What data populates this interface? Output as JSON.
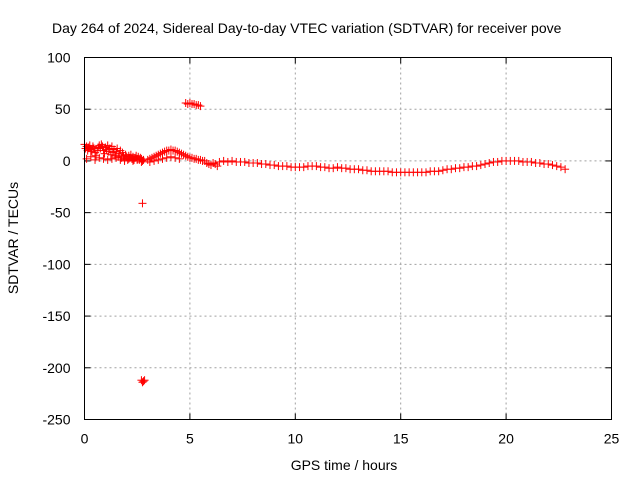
{
  "chart_data": {
    "type": "scatter",
    "title": "Day 264 of 2024, Sidereal Day-to-day VTEC variation (SDTVAR) for receiver pove",
    "xlabel": "GPS time / hours",
    "ylabel": "SDTVAR / TECUs",
    "xlim": [
      0,
      25
    ],
    "ylim": [
      -250,
      100
    ],
    "xticks": [
      0,
      5,
      10,
      15,
      20,
      25
    ],
    "yticks": [
      100,
      50,
      0,
      -50,
      -100,
      -150,
      -200,
      -250
    ],
    "grid": true,
    "marker": "+",
    "color": "#ff0000",
    "series": [
      {
        "name": "SDTVAR",
        "points": [
          [
            0.0,
            16
          ],
          [
            0.05,
            12
          ],
          [
            0.1,
            14
          ],
          [
            0.15,
            10
          ],
          [
            0.2,
            13
          ],
          [
            0.25,
            15
          ],
          [
            0.3,
            11
          ],
          [
            0.35,
            9
          ],
          [
            0.4,
            14
          ],
          [
            0.45,
            12
          ],
          [
            0.5,
            8
          ],
          [
            0.55,
            5
          ],
          [
            0.6,
            10
          ],
          [
            0.65,
            13
          ],
          [
            0.7,
            15
          ],
          [
            0.75,
            12
          ],
          [
            0.8,
            16
          ],
          [
            0.85,
            14
          ],
          [
            0.9,
            10
          ],
          [
            0.95,
            7
          ],
          [
            1.0,
            13
          ],
          [
            1.05,
            11
          ],
          [
            1.1,
            15
          ],
          [
            1.15,
            9
          ],
          [
            1.2,
            12
          ],
          [
            1.25,
            6
          ],
          [
            1.3,
            14
          ],
          [
            1.35,
            8
          ],
          [
            1.4,
            11
          ],
          [
            1.45,
            5
          ],
          [
            1.5,
            9
          ],
          [
            1.55,
            12
          ],
          [
            1.6,
            4
          ],
          [
            1.65,
            7
          ],
          [
            1.7,
            10
          ],
          [
            1.75,
            3
          ],
          [
            1.8,
            8
          ],
          [
            1.85,
            5
          ],
          [
            1.9,
            2
          ],
          [
            1.95,
            6
          ],
          [
            2.0,
            4
          ],
          [
            2.05,
            1
          ],
          [
            2.1,
            5
          ],
          [
            2.15,
            3
          ],
          [
            2.2,
            6
          ],
          [
            2.25,
            2
          ],
          [
            2.3,
            4
          ],
          [
            2.35,
            1
          ],
          [
            2.4,
            3
          ],
          [
            2.45,
            5
          ],
          [
            2.5,
            2
          ],
          [
            2.55,
            4
          ],
          [
            2.6,
            1
          ],
          [
            2.65,
            3
          ],
          [
            2.7,
            2
          ],
          [
            2.75,
            0
          ],
          [
            2.8,
            1
          ],
          [
            0.1,
            2
          ],
          [
            0.3,
            4
          ],
          [
            0.5,
            1
          ],
          [
            0.7,
            3
          ],
          [
            0.9,
            2
          ],
          [
            1.1,
            1
          ],
          [
            1.3,
            2
          ],
          [
            1.5,
            3
          ],
          [
            1.7,
            1
          ],
          [
            1.9,
            0
          ],
          [
            2.1,
            2
          ],
          [
            2.3,
            0
          ],
          [
            2.5,
            1
          ],
          [
            2.7,
            -1
          ],
          [
            2.75,
            -41
          ],
          [
            2.7,
            -212
          ],
          [
            2.75,
            -214
          ],
          [
            2.8,
            -213
          ],
          [
            2.85,
            -212
          ],
          [
            3.0,
            1
          ],
          [
            3.1,
            2
          ],
          [
            3.2,
            3
          ],
          [
            3.3,
            4
          ],
          [
            3.4,
            5
          ],
          [
            3.5,
            6
          ],
          [
            3.6,
            7
          ],
          [
            3.7,
            8
          ],
          [
            3.8,
            9
          ],
          [
            3.9,
            10
          ],
          [
            4.0,
            10
          ],
          [
            4.1,
            11
          ],
          [
            4.2,
            10
          ],
          [
            4.3,
            10
          ],
          [
            4.4,
            9
          ],
          [
            4.5,
            8
          ],
          [
            4.6,
            7
          ],
          [
            4.7,
            6
          ],
          [
            4.8,
            5
          ],
          [
            4.9,
            4
          ],
          [
            5.0,
            3
          ],
          [
            5.1,
            3
          ],
          [
            5.2,
            2
          ],
          [
            5.3,
            2
          ],
          [
            5.4,
            1
          ],
          [
            5.5,
            1
          ],
          [
            5.6,
            0
          ],
          [
            5.7,
            0
          ],
          [
            3.1,
            -1
          ],
          [
            3.3,
            0
          ],
          [
            3.5,
            1
          ],
          [
            3.7,
            2
          ],
          [
            3.9,
            3
          ],
          [
            4.1,
            4
          ],
          [
            4.3,
            3
          ],
          [
            4.5,
            2
          ],
          [
            4.8,
            56
          ],
          [
            4.9,
            55
          ],
          [
            5.0,
            56
          ],
          [
            5.1,
            55
          ],
          [
            5.2,
            55
          ],
          [
            5.3,
            54
          ],
          [
            5.4,
            54
          ],
          [
            5.5,
            53
          ],
          [
            5.8,
            -2
          ],
          [
            5.9,
            -3
          ],
          [
            6.0,
            -4
          ],
          [
            6.1,
            -2
          ],
          [
            6.2,
            -3
          ],
          [
            6.3,
            -5
          ],
          [
            6.4,
            -1
          ],
          [
            6.6,
            0
          ],
          [
            6.8,
            -1
          ],
          [
            7.0,
            0
          ],
          [
            7.2,
            -1
          ],
          [
            7.4,
            -1
          ],
          [
            7.6,
            -1
          ],
          [
            7.8,
            -2
          ],
          [
            8.0,
            -2
          ],
          [
            8.2,
            -2
          ],
          [
            8.4,
            -3
          ],
          [
            8.6,
            -3
          ],
          [
            8.8,
            -4
          ],
          [
            9.0,
            -4
          ],
          [
            9.2,
            -5
          ],
          [
            9.4,
            -5
          ],
          [
            9.6,
            -5
          ],
          [
            9.8,
            -6
          ],
          [
            10.0,
            -6
          ],
          [
            10.2,
            -6
          ],
          [
            10.4,
            -6
          ],
          [
            10.6,
            -5
          ],
          [
            10.8,
            -5
          ],
          [
            11.0,
            -5
          ],
          [
            11.2,
            -6
          ],
          [
            11.4,
            -6
          ],
          [
            11.6,
            -7
          ],
          [
            11.8,
            -7
          ],
          [
            12.0,
            -6
          ],
          [
            12.2,
            -7
          ],
          [
            12.4,
            -7
          ],
          [
            12.6,
            -8
          ],
          [
            12.8,
            -8
          ],
          [
            13.0,
            -8
          ],
          [
            13.2,
            -9
          ],
          [
            13.4,
            -9
          ],
          [
            13.6,
            -10
          ],
          [
            13.8,
            -10
          ],
          [
            14.0,
            -10
          ],
          [
            14.2,
            -10
          ],
          [
            14.4,
            -10
          ],
          [
            14.6,
            -11
          ],
          [
            14.8,
            -11
          ],
          [
            15.0,
            -11
          ],
          [
            15.2,
            -11
          ],
          [
            15.4,
            -11
          ],
          [
            15.6,
            -11
          ],
          [
            15.8,
            -11
          ],
          [
            16.0,
            -11
          ],
          [
            16.2,
            -11
          ],
          [
            16.4,
            -10
          ],
          [
            16.6,
            -10
          ],
          [
            16.8,
            -10
          ],
          [
            17.0,
            -9
          ],
          [
            17.2,
            -8
          ],
          [
            17.4,
            -8
          ],
          [
            17.6,
            -7
          ],
          [
            17.8,
            -7
          ],
          [
            18.0,
            -6
          ],
          [
            18.2,
            -6
          ],
          [
            18.4,
            -5
          ],
          [
            18.6,
            -5
          ],
          [
            18.8,
            -4
          ],
          [
            19.0,
            -3
          ],
          [
            19.2,
            -2
          ],
          [
            19.4,
            -1
          ],
          [
            19.6,
            -1
          ],
          [
            19.8,
            0
          ],
          [
            20.0,
            0
          ],
          [
            20.2,
            0
          ],
          [
            20.4,
            0
          ],
          [
            20.6,
            0
          ],
          [
            20.8,
            -1
          ],
          [
            21.0,
            -1
          ],
          [
            21.2,
            -1
          ],
          [
            21.4,
            -2
          ],
          [
            21.6,
            -2
          ],
          [
            21.8,
            -3
          ],
          [
            22.0,
            -3
          ],
          [
            22.2,
            -4
          ],
          [
            22.4,
            -5
          ],
          [
            22.6,
            -6
          ],
          [
            22.8,
            -8
          ]
        ]
      }
    ]
  }
}
